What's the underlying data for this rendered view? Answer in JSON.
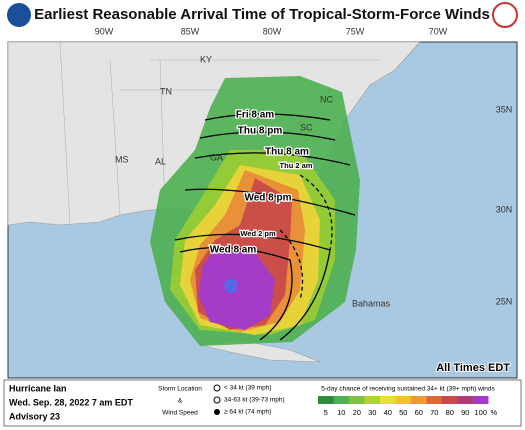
{
  "header": {
    "title": "Earliest Reasonable Arrival Time of Tropical-Storm-Force Winds"
  },
  "map": {
    "longitudes": [
      "90W",
      "85W",
      "80W",
      "75W",
      "70W"
    ],
    "latitudes": [
      "35N",
      "30N",
      "25N"
    ],
    "places": [
      "KY",
      "TN",
      "NC",
      "SC",
      "MS",
      "AL",
      "GA",
      "Bahamas"
    ],
    "arrival_times": [
      "Fri 8 am",
      "Thu 8 pm",
      "Thu 8 am",
      "Thu 2 am",
      "Wed 8 pm",
      "Wed 2 pm",
      "Wed 8 am"
    ],
    "note": "All Times EDT"
  },
  "footer": {
    "storm": [
      "Hurricane Ian",
      "Wed. Sep. 28, 2022  7 am EDT",
      "Advisory 23"
    ],
    "symbol_legend": {
      "title": [
        "Storm Location",
        "&",
        "Wind Speed"
      ],
      "items": [
        "< 34 kt (39 mph)",
        "34-63 kt (39-73 mph)",
        "≥ 64 kt (74 mph)"
      ]
    },
    "scale": {
      "title": "5-day chance of receiving sustained 34+ kt (39+ mph) winds",
      "labels": [
        "5",
        "10",
        "20",
        "30",
        "40",
        "50",
        "60",
        "70",
        "80",
        "90",
        "100"
      ],
      "unit": "%"
    }
  }
}
